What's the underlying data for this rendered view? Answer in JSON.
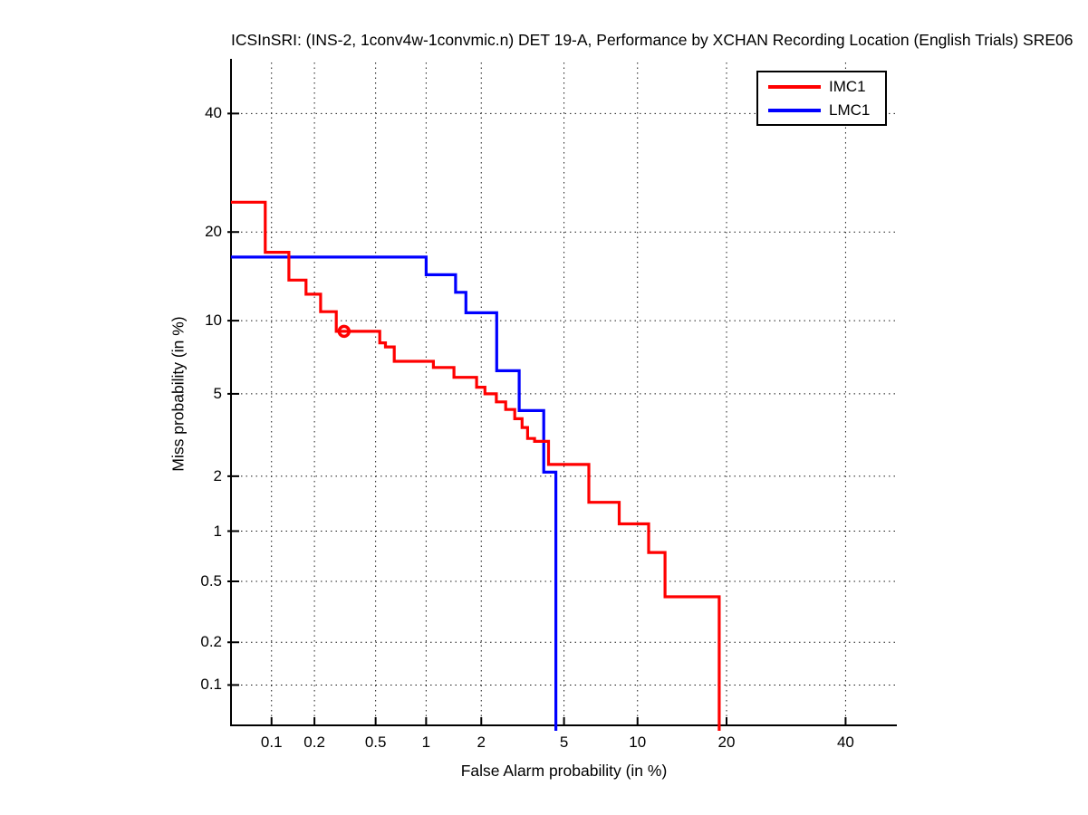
{
  "chart_data": {
    "type": "line",
    "variant": "DET-curve-steps",
    "title": "ICSInSRI: (INS-2, 1conv4w-1convmic.n) DET 19-A,  Performance by XCHAN Recording Location (English Trials) SRE06",
    "xlabel": "False Alarm probability (in %)",
    "ylabel": "Miss probability (in %)",
    "x_scale": "probit",
    "y_scale": "probit",
    "xlim_pct": [
      0.05,
      50
    ],
    "ylim_pct": [
      0.05,
      50
    ],
    "x_tick_values": [
      0.1,
      0.2,
      0.5,
      1,
      2,
      5,
      10,
      20,
      40
    ],
    "x_tick_labels": [
      "0.1",
      "0.2",
      "0.5",
      "1",
      "2",
      "5",
      "10",
      "20",
      "40"
    ],
    "y_tick_values": [
      0.1,
      0.2,
      0.5,
      1,
      2,
      5,
      10,
      20,
      40
    ],
    "y_tick_labels": [
      "0.1",
      "0.2",
      "0.5",
      "1",
      "2",
      "5",
      "10",
      "20",
      "40"
    ],
    "grid": "dotted",
    "legend_position": "top-right",
    "series": [
      {
        "name": "LMC1",
        "color": "#0000ff",
        "points_pct_fa_miss": [
          [
            0.05,
            16.7
          ],
          [
            1.0,
            16.7
          ],
          [
            1.0,
            14.6
          ],
          [
            1.46,
            14.6
          ],
          [
            1.46,
            12.7
          ],
          [
            1.66,
            12.7
          ],
          [
            1.66,
            10.7
          ],
          [
            2.4,
            10.7
          ],
          [
            2.4,
            6.3
          ],
          [
            3.1,
            6.3
          ],
          [
            3.1,
            4.2
          ],
          [
            4.05,
            4.2
          ],
          [
            4.05,
            2.1
          ],
          [
            4.6,
            2.1
          ],
          [
            4.6,
            0.04
          ]
        ]
      },
      {
        "name": "IMC1",
        "color": "#ff0000",
        "points_pct_fa_miss": [
          [
            0.05,
            24.4
          ],
          [
            0.09,
            24.4
          ],
          [
            0.09,
            17.3
          ],
          [
            0.133,
            17.3
          ],
          [
            0.133,
            14.0
          ],
          [
            0.175,
            14.0
          ],
          [
            0.175,
            12.5
          ],
          [
            0.22,
            12.5
          ],
          [
            0.22,
            10.8
          ],
          [
            0.28,
            10.8
          ],
          [
            0.28,
            9.1
          ],
          [
            0.53,
            9.1
          ],
          [
            0.53,
            8.2
          ],
          [
            0.575,
            8.2
          ],
          [
            0.575,
            7.9
          ],
          [
            0.65,
            7.9
          ],
          [
            0.65,
            6.9
          ],
          [
            1.1,
            6.9
          ],
          [
            1.1,
            6.5
          ],
          [
            1.43,
            6.5
          ],
          [
            1.43,
            5.9
          ],
          [
            1.89,
            5.9
          ],
          [
            1.89,
            5.35
          ],
          [
            2.09,
            5.35
          ],
          [
            2.09,
            5.0
          ],
          [
            2.39,
            5.0
          ],
          [
            2.39,
            4.6
          ],
          [
            2.66,
            4.6
          ],
          [
            2.66,
            4.25
          ],
          [
            2.95,
            4.25
          ],
          [
            2.95,
            3.85
          ],
          [
            3.2,
            3.85
          ],
          [
            3.2,
            3.5
          ],
          [
            3.4,
            3.5
          ],
          [
            3.4,
            3.1
          ],
          [
            3.67,
            3.1
          ],
          [
            3.67,
            3.0
          ],
          [
            4.26,
            3.0
          ],
          [
            4.26,
            2.3
          ],
          [
            6.4,
            2.3
          ],
          [
            6.4,
            1.45
          ],
          [
            8.5,
            1.45
          ],
          [
            8.5,
            1.1
          ],
          [
            11.0,
            1.1
          ],
          [
            11.0,
            0.75
          ],
          [
            12.6,
            0.75
          ],
          [
            12.6,
            0.4
          ],
          [
            19.0,
            0.4
          ],
          [
            19.0,
            0.04
          ]
        ]
      }
    ],
    "markers": [
      {
        "series": "IMC1",
        "fa_pct": 0.315,
        "miss_pct": 9.1,
        "shape": "open-circle",
        "color": "#ff0000"
      }
    ]
  },
  "legend": {
    "entries": [
      {
        "label": "IMC1",
        "color": "#ff0000"
      },
      {
        "label": "LMC1",
        "color": "#0000ff"
      }
    ]
  },
  "colors": {
    "axis": "#000000",
    "grid": "#000000",
    "background": "#ffffff"
  }
}
